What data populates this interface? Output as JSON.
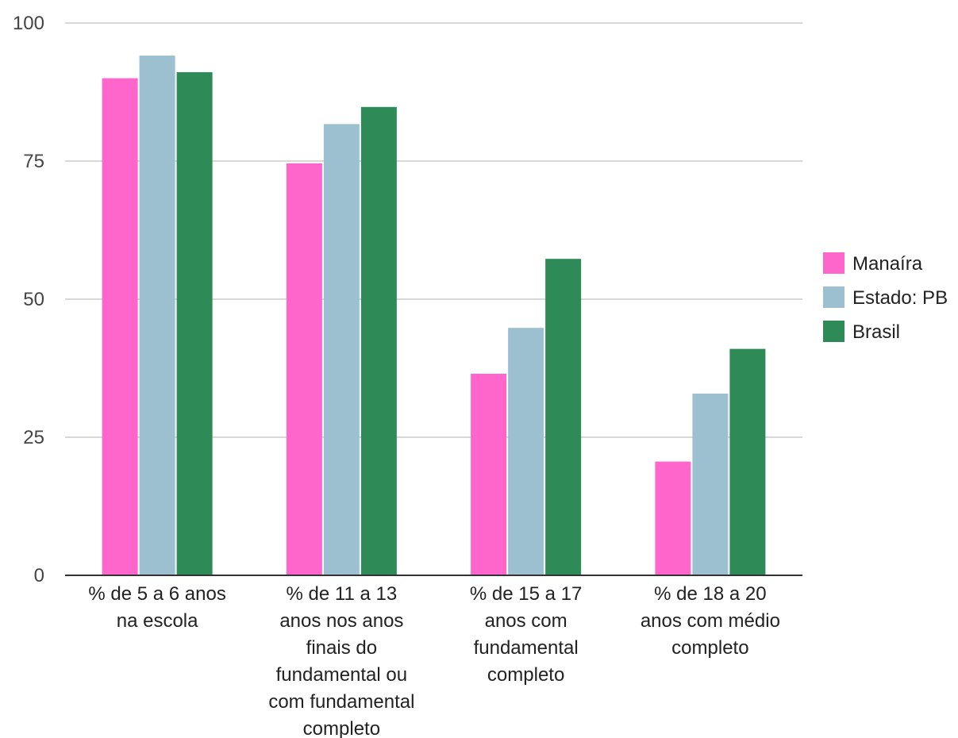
{
  "chart_data": {
    "type": "bar",
    "categories": [
      [
        "% de 5 a 6 anos",
        "na escola"
      ],
      [
        "% de 11 a 13",
        "anos nos anos",
        "finais do",
        "fundamental ou",
        "com fundamental",
        "completo"
      ],
      [
        "% de 15 a 17",
        "anos com",
        "fundamental",
        "completo"
      ],
      [
        "% de 18 a 20",
        "anos com médio",
        "completo"
      ]
    ],
    "series": [
      {
        "name": "Manaíra",
        "color": "#ff66cc",
        "values": [
          90.0,
          74.6,
          36.5,
          20.6
        ]
      },
      {
        "name": "Estado: PB",
        "color": "#9cc0cf",
        "values": [
          94.1,
          81.7,
          44.8,
          32.9
        ]
      },
      {
        "name": "Brasil",
        "color": "#2e8b57",
        "values": [
          91.1,
          84.8,
          57.3,
          41.0
        ]
      }
    ],
    "ylim": [
      0,
      100
    ],
    "yticks": [
      0,
      25,
      50,
      75,
      100
    ],
    "grid": true,
    "legend": "right"
  }
}
